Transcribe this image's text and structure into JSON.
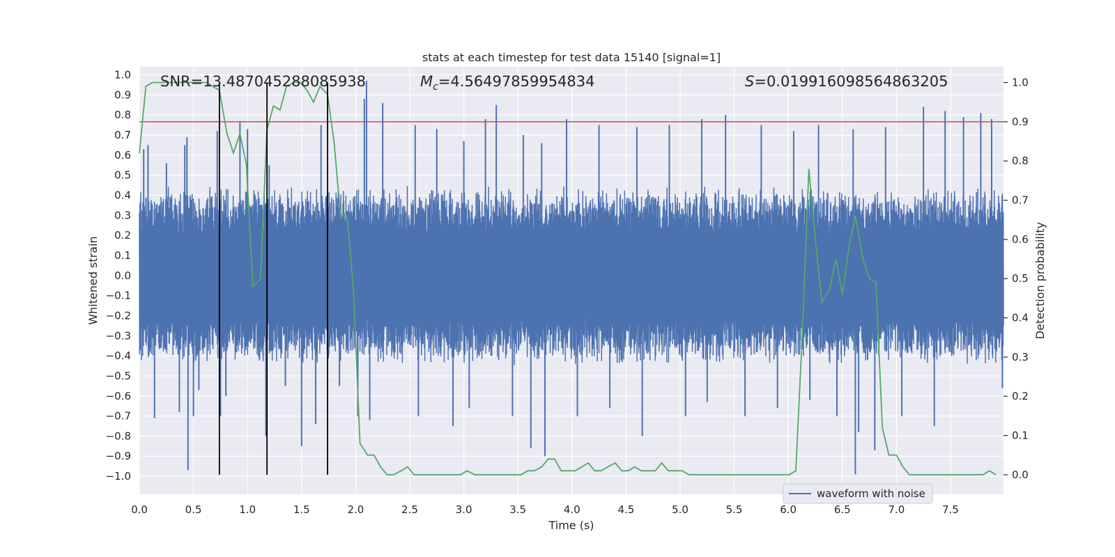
{
  "chart_data": {
    "type": "line",
    "title": "stats at each timestep for test data 15140 [signal=1]",
    "xlabel": "Time (s)",
    "ylabel_left": "Whitened strain",
    "ylabel_right": "Detection probability",
    "xlim": [
      0.0,
      7.99
    ],
    "ylim_left": [
      -1.09,
      1.04
    ],
    "ylim_right": [
      -0.05,
      1.04
    ],
    "xticks": [
      "0.0",
      "0.5",
      "1.0",
      "1.5",
      "2.0",
      "2.5",
      "3.0",
      "3.5",
      "4.0",
      "4.5",
      "5.0",
      "5.5",
      "6.0",
      "6.5",
      "7.0",
      "7.5"
    ],
    "yticks_left": [
      "1.0",
      "0.9",
      "0.8",
      "0.7",
      "0.6",
      "0.5",
      "0.4",
      "0.3",
      "0.2",
      "0.1",
      "0.0",
      "-0.1",
      "-0.2",
      "-0.3",
      "-0.4",
      "-0.5",
      "-0.6",
      "-0.7",
      "-0.8",
      "-0.9",
      "-1.0"
    ],
    "yticks_right": [
      "1.0",
      "0.9",
      "0.8",
      "0.7",
      "0.6",
      "0.5",
      "0.4",
      "0.3",
      "0.2",
      "0.1",
      "0.0"
    ],
    "grid": true,
    "legend_placement": "lower-right",
    "annotations": {
      "snr": "SNR=13.487045288085938",
      "mc_symbol": "M",
      "mc_sub": "c",
      "mc_value": "=4.56497859954834",
      "s_symbol": "S",
      "s_value": "=0.019916098564863205"
    },
    "threshold_right": 0.9,
    "vlines_x": [
      0.74,
      1.18,
      1.74
    ],
    "waveform": {
      "name": "waveform with noise",
      "color": "#4c72b0",
      "sample_count": 4000,
      "approx_envelope": [
        0.35,
        0.45
      ],
      "peaks": [
        [
          0.04,
          0.63
        ],
        [
          0.08,
          0.65
        ],
        [
          0.14,
          -0.71
        ],
        [
          0.25,
          0.56
        ],
        [
          0.37,
          -0.68
        ],
        [
          0.42,
          0.65
        ],
        [
          0.44,
          0.69
        ],
        [
          0.45,
          -0.97
        ],
        [
          0.5,
          -0.7
        ],
        [
          0.55,
          -0.57
        ],
        [
          0.72,
          0.72
        ],
        [
          0.75,
          -0.7
        ],
        [
          0.8,
          -0.6
        ],
        [
          0.93,
          0.77
        ],
        [
          1.0,
          0.73
        ],
        [
          1.17,
          -0.8
        ],
        [
          1.2,
          0.55
        ],
        [
          1.35,
          -0.55
        ],
        [
          1.5,
          -0.85
        ],
        [
          1.63,
          -0.74
        ],
        [
          1.68,
          0.75
        ],
        [
          1.85,
          -0.55
        ],
        [
          2.02,
          -0.7
        ],
        [
          2.08,
          0.88
        ],
        [
          2.1,
          0.97
        ],
        [
          2.13,
          -0.72
        ],
        [
          2.25,
          0.86
        ],
        [
          2.55,
          0.75
        ],
        [
          2.58,
          -0.7
        ],
        [
          2.75,
          0.73
        ],
        [
          2.9,
          -0.75
        ],
        [
          3.0,
          0.67
        ],
        [
          3.05,
          -0.66
        ],
        [
          3.2,
          0.78
        ],
        [
          3.3,
          0.85
        ],
        [
          3.45,
          -0.7
        ],
        [
          3.55,
          0.7
        ],
        [
          3.62,
          -0.86
        ],
        [
          3.72,
          0.66
        ],
        [
          3.75,
          -0.9
        ],
        [
          3.95,
          0.78
        ],
        [
          4.05,
          -0.7
        ],
        [
          4.25,
          0.75
        ],
        [
          4.35,
          -0.66
        ],
        [
          4.6,
          0.74
        ],
        [
          4.65,
          -0.8
        ],
        [
          4.9,
          0.75
        ],
        [
          5.05,
          -0.7
        ],
        [
          5.2,
          0.78
        ],
        [
          5.25,
          -0.63
        ],
        [
          5.42,
          0.8
        ],
        [
          5.6,
          -0.7
        ],
        [
          5.75,
          0.75
        ],
        [
          5.9,
          -0.66
        ],
        [
          6.05,
          0.72
        ],
        [
          6.2,
          -0.62
        ],
        [
          6.28,
          0.75
        ],
        [
          6.45,
          -0.7
        ],
        [
          6.6,
          0.73
        ],
        [
          6.62,
          -0.99
        ],
        [
          6.65,
          -0.78
        ],
        [
          6.8,
          -0.87
        ],
        [
          6.9,
          0.74
        ],
        [
          7.05,
          -0.7
        ],
        [
          7.25,
          0.84
        ],
        [
          7.35,
          -0.75
        ],
        [
          7.45,
          0.82
        ],
        [
          7.62,
          0.79
        ],
        [
          7.78,
          0.81
        ],
        [
          7.88,
          0.78
        ],
        [
          7.98,
          -0.56
        ]
      ]
    },
    "probability": {
      "name": "Detection probability",
      "color": "#55a868",
      "x": [
        0.0,
        0.06,
        0.12,
        0.19,
        0.25,
        0.31,
        0.37,
        0.43,
        0.5,
        0.56,
        0.62,
        0.68,
        0.74,
        0.81,
        0.87,
        0.93,
        0.99,
        1.05,
        1.12,
        1.18,
        1.24,
        1.3,
        1.36,
        1.43,
        1.49,
        1.55,
        1.61,
        1.67,
        1.74,
        1.8,
        1.86,
        1.92,
        1.98,
        2.04,
        2.11,
        2.17,
        2.23,
        2.29,
        2.35,
        2.42,
        2.48,
        2.54,
        2.6,
        2.66,
        2.73,
        2.79,
        2.85,
        2.91,
        2.97,
        3.03,
        3.1,
        3.16,
        3.22,
        3.28,
        3.34,
        3.41,
        3.47,
        3.53,
        3.59,
        3.65,
        3.72,
        3.78,
        3.84,
        3.9,
        3.96,
        4.03,
        4.09,
        4.15,
        4.21,
        4.27,
        4.33,
        4.4,
        4.46,
        4.52,
        4.58,
        4.64,
        4.71,
        4.77,
        4.83,
        4.89,
        4.95,
        5.02,
        5.08,
        5.14,
        5.2,
        5.26,
        5.32,
        5.39,
        5.45,
        5.51,
        5.57,
        5.63,
        5.7,
        5.76,
        5.82,
        5.88,
        5.94,
        6.01,
        6.07,
        6.13,
        6.19,
        6.25,
        6.31,
        6.38,
        6.44,
        6.5,
        6.56,
        6.62,
        6.69,
        6.75,
        6.81,
        6.87,
        6.93,
        7.0,
        7.06,
        7.12,
        7.18,
        7.24,
        7.3,
        7.37,
        7.43,
        7.49,
        7.55,
        7.61,
        7.68,
        7.74,
        7.8,
        7.86,
        7.92
      ],
      "y": [
        0.82,
        0.99,
        1.0,
        1.0,
        1.0,
        1.0,
        1.0,
        1.0,
        1.0,
        1.0,
        1.0,
        0.99,
        0.98,
        0.87,
        0.82,
        0.87,
        0.79,
        0.48,
        0.5,
        0.88,
        0.94,
        0.93,
        0.99,
        1.0,
        1.0,
        0.98,
        0.95,
        0.99,
        0.97,
        0.85,
        0.66,
        0.66,
        0.47,
        0.08,
        0.05,
        0.05,
        0.02,
        0.0,
        0.0,
        0.01,
        0.02,
        0.0,
        0.0,
        0.0,
        0.0,
        0.0,
        0.0,
        0.0,
        0.0,
        0.01,
        0.0,
        0.0,
        0.0,
        0.0,
        0.0,
        0.0,
        0.0,
        0.0,
        0.01,
        0.01,
        0.02,
        0.04,
        0.04,
        0.01,
        0.01,
        0.01,
        0.02,
        0.03,
        0.01,
        0.01,
        0.02,
        0.03,
        0.01,
        0.01,
        0.02,
        0.01,
        0.01,
        0.01,
        0.03,
        0.01,
        0.01,
        0.01,
        0.0,
        0.0,
        0.0,
        0.0,
        0.0,
        0.0,
        0.0,
        0.0,
        0.0,
        0.0,
        0.0,
        0.0,
        0.0,
        0.0,
        0.0,
        0.0,
        0.01,
        0.36,
        0.78,
        0.6,
        0.44,
        0.47,
        0.55,
        0.46,
        0.58,
        0.66,
        0.55,
        0.5,
        0.49,
        0.12,
        0.05,
        0.05,
        0.02,
        0.0,
        0.0,
        0.0,
        0.0,
        0.0,
        0.0,
        0.0,
        0.0,
        0.0,
        0.0,
        0.0,
        0.0,
        0.01,
        0.0
      ]
    },
    "threshold_color": "#c44e52",
    "vline_color": "#000000"
  }
}
